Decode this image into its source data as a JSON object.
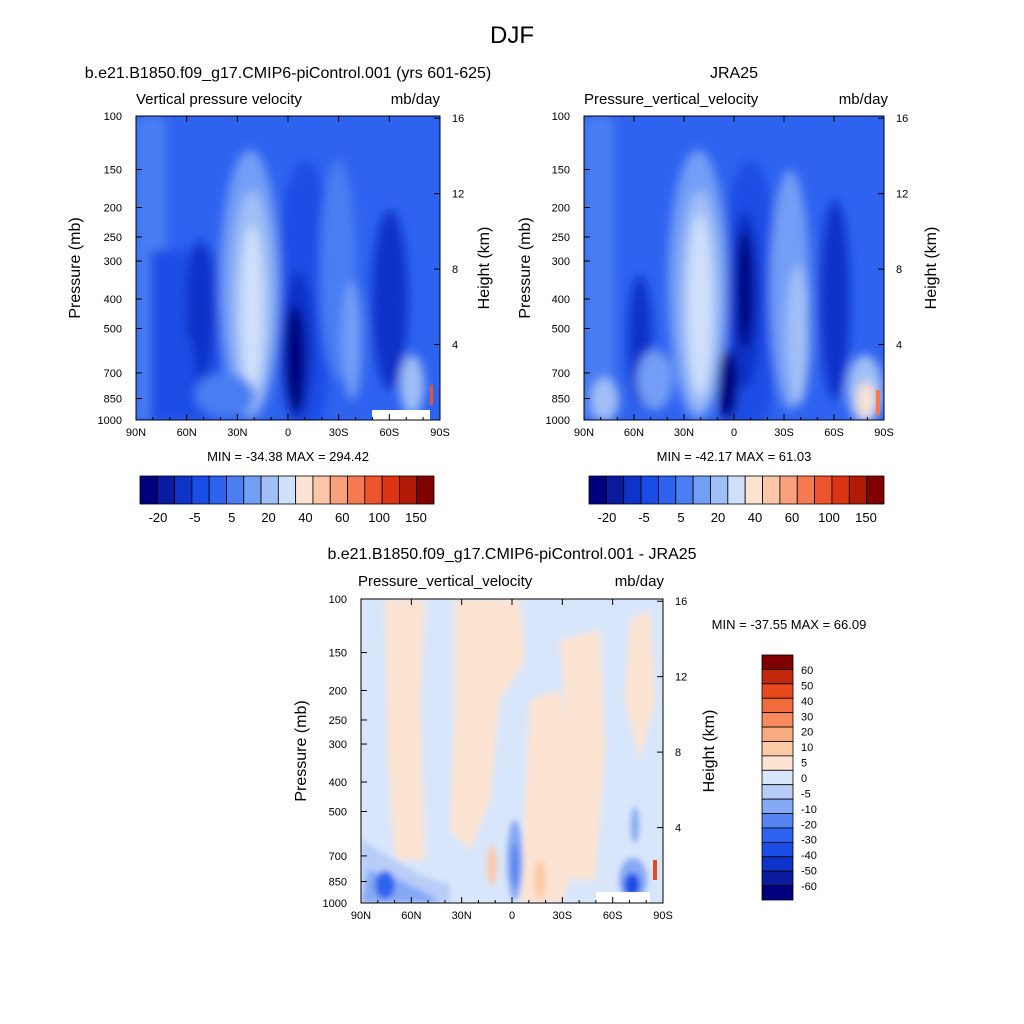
{
  "figure_title": "DJF",
  "colors": {
    "vv_scale": [
      "#00007e",
      "#0a1ba0",
      "#0f33c8",
      "#1a4de6",
      "#2e63f0",
      "#4a7ef2",
      "#739ef5",
      "#a0bff6",
      "#cfe1fa",
      "#fde4d2",
      "#fbc5a8",
      "#f9a07c",
      "#f57a52",
      "#ee542c",
      "#dc3514",
      "#b11a07",
      "#800000"
    ],
    "diff_scale": [
      "#00007e",
      "#0a1ba0",
      "#0f33c8",
      "#1a4de6",
      "#2e63f0",
      "#5685f2",
      "#86a9f5",
      "#b7cdf8",
      "#d8e6fb",
      "#fde4d2",
      "#fbcba8",
      "#f9ab80",
      "#f68a5c",
      "#f26b3a",
      "#e84a1e",
      "#c02a0b",
      "#800000"
    ]
  },
  "panels": {
    "model": {
      "title": "b.e21.B1850.f09_g17.CMIP6-piControl.001 (yrs 601-625)",
      "left_label": "Vertical pressure velocity",
      "right_label": "mb/day",
      "stats": "MIN = -34.38  MAX = 294.42"
    },
    "obs": {
      "title": "JRA25",
      "left_label": "Pressure_vertical_velocity",
      "right_label": "mb/day",
      "stats": "MIN = -42.17  MAX =  61.03"
    },
    "diff": {
      "title": "b.e21.B1850.f09_g17.CMIP6-piControl.001 - JRA25",
      "left_label": "Pressure_vertical_velocity",
      "right_label": "mb/day",
      "stats": "MIN = -37.55  MAX =  66.09"
    }
  },
  "axes": {
    "ylabel_left": "Pressure (mb)",
    "ylabel_right": "Height (km)",
    "pressure_ticks": [
      "100",
      "150",
      "200",
      "250",
      "300",
      "400",
      "500",
      "700",
      "850",
      "1000"
    ],
    "height_ticks": [
      "16",
      "12",
      "8",
      "4"
    ],
    "lat_ticks": [
      "90N",
      "60N",
      "30N",
      "0",
      "30S",
      "60S",
      "90S"
    ]
  },
  "colorbars": {
    "main_labels": [
      "-20",
      "-5",
      "5",
      "20",
      "40",
      "60",
      "100",
      "150"
    ],
    "diff_labels": [
      "60",
      "50",
      "40",
      "30",
      "20",
      "10",
      "5",
      "0",
      "-5",
      "-10",
      "-20",
      "-30",
      "-40",
      "-50",
      "-60"
    ]
  },
  "chart_data": [
    {
      "type": "heatmap",
      "title": "b.e21.B1850.f09_g17.CMIP6-piControl.001 (yrs 601-625)",
      "subtitle_left": "Vertical pressure velocity",
      "subtitle_right": "mb/day",
      "xlabel": "",
      "ylabel": "Pressure (mb)",
      "ylabel_right": "Height (km)",
      "x": [
        90,
        60,
        30,
        0,
        -30,
        -60,
        -90
      ],
      "x_tick_labels": [
        "90N",
        "60N",
        "30N",
        "0",
        "30S",
        "60S",
        "90S"
      ],
      "y_pressure": [
        100,
        150,
        200,
        250,
        300,
        400,
        500,
        700,
        850,
        1000
      ],
      "y_log_scale": true,
      "min": -34.38,
      "max": 294.42,
      "features": [
        {
          "lat_center": 5,
          "lat_halfwidth": 14,
          "p_top": 250,
          "value": -25
        },
        {
          "lat_center": -40,
          "lat_halfwidth": 12,
          "p_top": 150,
          "value": 8
        },
        {
          "lat_center": 27,
          "lat_halfwidth": 14,
          "p_top": 150,
          "value": 18
        },
        {
          "lat_center": -78,
          "lat_halfwidth": 8,
          "p_top": 600,
          "value": 40
        }
      ]
    },
    {
      "type": "heatmap",
      "title": "JRA25",
      "subtitle_left": "Pressure_vertical_velocity",
      "subtitle_right": "mb/day",
      "xlabel": "",
      "ylabel": "Pressure (mb)",
      "ylabel_right": "Height (km)",
      "x": [
        90,
        60,
        30,
        0,
        -30,
        -60,
        -90
      ],
      "x_tick_labels": [
        "90N",
        "60N",
        "30N",
        "0",
        "30S",
        "60S",
        "90S"
      ],
      "y_pressure": [
        100,
        150,
        200,
        250,
        300,
        400,
        500,
        700,
        850,
        1000
      ],
      "y_log_scale": true,
      "min": -42.17,
      "max": 61.03,
      "features": [
        {
          "lat_center": 3,
          "lat_halfwidth": 14,
          "p_top": 250,
          "value": -25
        },
        {
          "lat_center": -40,
          "lat_halfwidth": 12,
          "p_top": 150,
          "value": 8
        },
        {
          "lat_center": 27,
          "lat_halfwidth": 14,
          "p_top": 150,
          "value": 15
        },
        {
          "lat_center": -82,
          "lat_halfwidth": 8,
          "p_top": 650,
          "value": 30
        }
      ]
    },
    {
      "type": "heatmap",
      "title": "b.e21.B1850.f09_g17.CMIP6-piControl.001 - JRA25",
      "subtitle_left": "Pressure_vertical_velocity",
      "subtitle_right": "mb/day",
      "xlabel": "",
      "ylabel": "Pressure (mb)",
      "ylabel_right": "Height (km)",
      "x": [
        90,
        60,
        30,
        0,
        -30,
        -60,
        -90
      ],
      "x_tick_labels": [
        "90N",
        "60N",
        "30N",
        "0",
        "30S",
        "60S",
        "90S"
      ],
      "y_pressure": [
        100,
        150,
        200,
        250,
        300,
        400,
        500,
        700,
        850,
        1000
      ],
      "y_log_scale": true,
      "min": -37.55,
      "max": 66.09,
      "features": [
        {
          "lat_center": -5,
          "lat_halfwidth": 4,
          "p_top": 600,
          "value": -12
        },
        {
          "lat_center": -70,
          "lat_halfwidth": 6,
          "p_top": 750,
          "value": -30
        },
        {
          "lat_center": 78,
          "lat_halfwidth": 10,
          "p_top": 800,
          "value": -20
        },
        {
          "lat_center": -10,
          "lat_halfwidth": 8,
          "p_top": 300,
          "value": 3
        }
      ]
    }
  ]
}
